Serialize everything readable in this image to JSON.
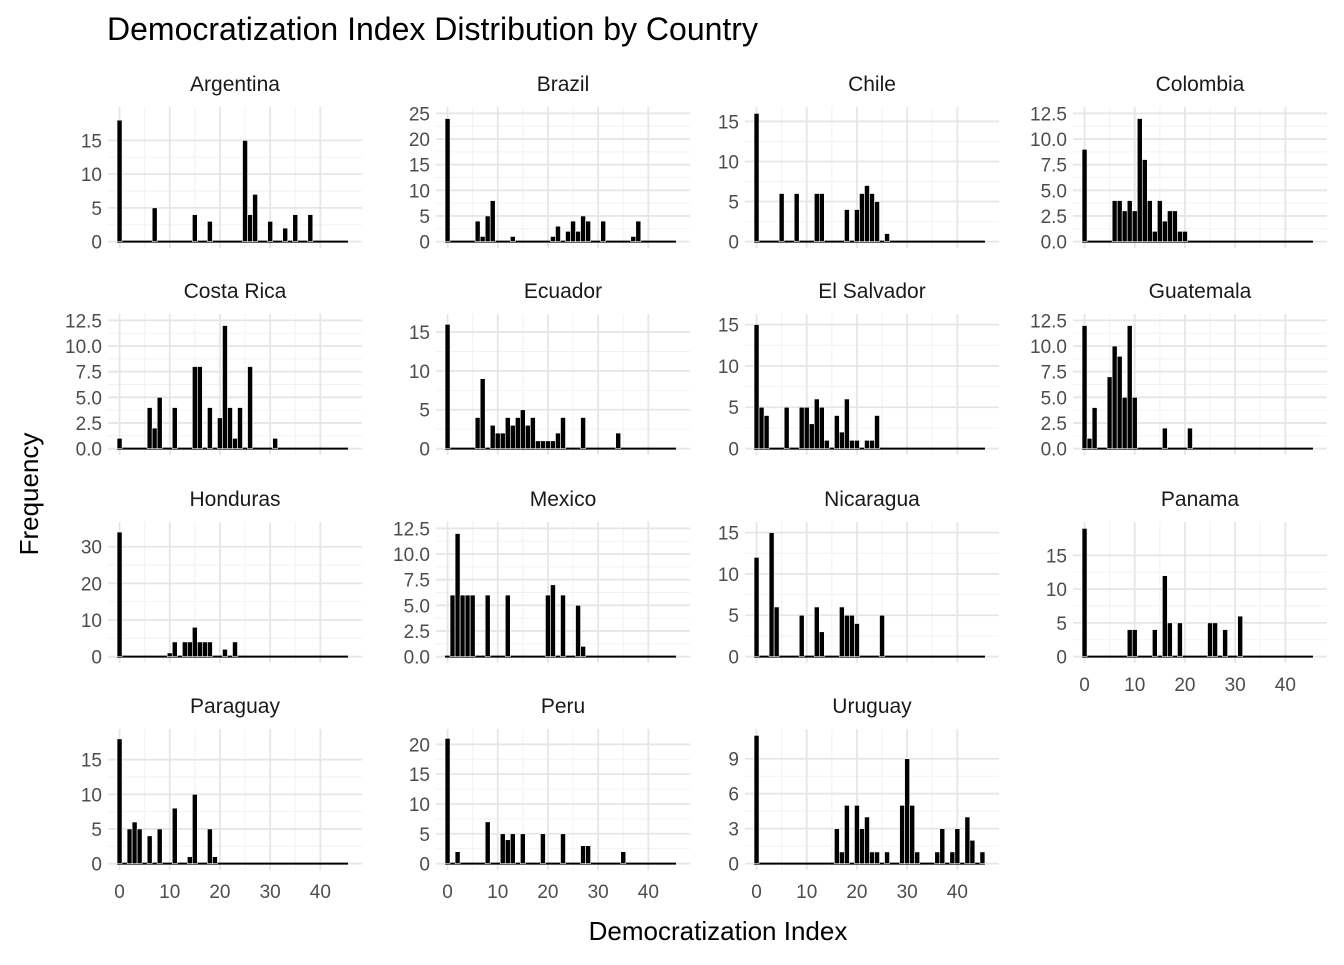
{
  "chart_data": {
    "type": "bar",
    "title": "Democratization Index Distribution by Country",
    "xlabel": "Democratization Index",
    "ylabel": "Frequency",
    "xlim": [
      0,
      46
    ],
    "x_ticks": [
      0,
      10,
      20,
      30,
      40
    ],
    "bin_width": 1,
    "bar_color": "#000000",
    "grid": true,
    "panels": [
      {
        "name": "Argentina",
        "y_ticks": [
          "0",
          "5",
          "10",
          "15"
        ],
        "y_tick_values": [
          0,
          5,
          10,
          15
        ],
        "ylim": [
          0,
          19
        ],
        "bars": [
          [
            0,
            18
          ],
          [
            7,
            5
          ],
          [
            15,
            4
          ],
          [
            18,
            3
          ],
          [
            25,
            15
          ],
          [
            26,
            4
          ],
          [
            27,
            7
          ],
          [
            30,
            3
          ],
          [
            33,
            2
          ],
          [
            35,
            4
          ],
          [
            38,
            4
          ]
        ]
      },
      {
        "name": "Brazil",
        "y_ticks": [
          "0",
          "5",
          "10",
          "15",
          "20",
          "25"
        ],
        "y_tick_values": [
          0,
          5,
          10,
          15,
          20,
          25
        ],
        "ylim": [
          0,
          25
        ],
        "bars": [
          [
            0,
            24
          ],
          [
            6,
            4
          ],
          [
            7,
            1
          ],
          [
            8,
            5
          ],
          [
            9,
            8
          ],
          [
            13,
            1
          ],
          [
            21,
            1
          ],
          [
            22,
            3
          ],
          [
            24,
            2
          ],
          [
            25,
            4
          ],
          [
            26,
            2
          ],
          [
            27,
            5
          ],
          [
            28,
            4
          ],
          [
            31,
            4
          ],
          [
            37,
            1
          ],
          [
            38,
            4
          ]
        ]
      },
      {
        "name": "Chile",
        "y_ticks": [
          "0",
          "5",
          "10",
          "15"
        ],
        "y_tick_values": [
          0,
          5,
          10,
          15
        ],
        "ylim": [
          0,
          16
        ],
        "bars": [
          [
            0,
            16
          ],
          [
            5,
            6
          ],
          [
            8,
            6
          ],
          [
            12,
            6
          ],
          [
            13,
            6
          ],
          [
            18,
            4
          ],
          [
            20,
            4
          ],
          [
            21,
            6
          ],
          [
            22,
            7
          ],
          [
            23,
            6
          ],
          [
            24,
            5
          ],
          [
            26,
            1
          ]
        ]
      },
      {
        "name": "Colombia",
        "y_ticks": [
          "0.0",
          "2.5",
          "5.0",
          "7.5",
          "10.0",
          "12.5"
        ],
        "y_tick_values": [
          0,
          2.5,
          5,
          7.5,
          10,
          12.5
        ],
        "ylim": [
          0,
          12.5
        ],
        "bars": [
          [
            0,
            9
          ],
          [
            6,
            4
          ],
          [
            7,
            4
          ],
          [
            8,
            3
          ],
          [
            9,
            4
          ],
          [
            10,
            3
          ],
          [
            11,
            12
          ],
          [
            12,
            8
          ],
          [
            13,
            4
          ],
          [
            14,
            1
          ],
          [
            15,
            4
          ],
          [
            16,
            2
          ],
          [
            17,
            3
          ],
          [
            18,
            3
          ],
          [
            19,
            1
          ],
          [
            20,
            1
          ]
        ]
      },
      {
        "name": "Costa Rica",
        "y_ticks": [
          "0.0",
          "2.5",
          "5.0",
          "7.5",
          "10.0",
          "12.5"
        ],
        "y_tick_values": [
          0,
          2.5,
          5,
          7.5,
          10,
          12.5
        ],
        "ylim": [
          0,
          12.5
        ],
        "bars": [
          [
            0,
            1
          ],
          [
            6,
            4
          ],
          [
            7,
            2
          ],
          [
            8,
            5
          ],
          [
            11,
            4
          ],
          [
            15,
            8
          ],
          [
            16,
            8
          ],
          [
            18,
            4
          ],
          [
            20,
            3
          ],
          [
            21,
            12
          ],
          [
            22,
            4
          ],
          [
            23,
            1
          ],
          [
            24,
            4
          ],
          [
            26,
            8
          ],
          [
            31,
            1
          ]
        ]
      },
      {
        "name": "Ecuador",
        "y_ticks": [
          "0",
          "5",
          "10",
          "15"
        ],
        "y_tick_values": [
          0,
          5,
          10,
          15
        ],
        "ylim": [
          0,
          16.5
        ],
        "bars": [
          [
            0,
            16
          ],
          [
            6,
            4
          ],
          [
            7,
            9
          ],
          [
            9,
            3
          ],
          [
            10,
            2
          ],
          [
            11,
            2
          ],
          [
            12,
            4
          ],
          [
            13,
            3
          ],
          [
            14,
            4
          ],
          [
            15,
            5
          ],
          [
            16,
            3
          ],
          [
            17,
            4
          ],
          [
            18,
            1
          ],
          [
            19,
            1
          ],
          [
            20,
            1
          ],
          [
            21,
            1
          ],
          [
            22,
            2
          ],
          [
            23,
            4
          ],
          [
            27,
            4
          ],
          [
            34,
            2
          ]
        ]
      },
      {
        "name": "El Salvador",
        "y_ticks": [
          "0",
          "5",
          "10",
          "15"
        ],
        "y_tick_values": [
          0,
          5,
          10,
          15
        ],
        "ylim": [
          0,
          15.5
        ],
        "bars": [
          [
            0,
            15
          ],
          [
            1,
            5
          ],
          [
            2,
            4
          ],
          [
            6,
            5
          ],
          [
            9,
            5
          ],
          [
            10,
            5
          ],
          [
            11,
            3
          ],
          [
            12,
            6
          ],
          [
            13,
            5
          ],
          [
            14,
            1
          ],
          [
            16,
            4
          ],
          [
            17,
            2
          ],
          [
            18,
            6
          ],
          [
            19,
            1
          ],
          [
            20,
            1
          ],
          [
            22,
            1
          ],
          [
            23,
            1
          ],
          [
            24,
            4
          ]
        ]
      },
      {
        "name": "Guatemala",
        "y_ticks": [
          "0.0",
          "2.5",
          "5.0",
          "7.5",
          "10.0",
          "12.5"
        ],
        "y_tick_values": [
          0,
          2.5,
          5,
          7.5,
          10,
          12.5
        ],
        "ylim": [
          0,
          12.5
        ],
        "bars": [
          [
            0,
            12
          ],
          [
            1,
            1
          ],
          [
            2,
            4
          ],
          [
            5,
            7
          ],
          [
            6,
            10
          ],
          [
            7,
            9
          ],
          [
            8,
            5
          ],
          [
            9,
            12
          ],
          [
            10,
            5
          ],
          [
            16,
            2
          ],
          [
            21,
            2
          ]
        ]
      },
      {
        "name": "Honduras",
        "y_ticks": [
          "0",
          "10",
          "20",
          "30"
        ],
        "y_tick_values": [
          0,
          10,
          20,
          30
        ],
        "ylim": [
          0,
          35
        ],
        "bars": [
          [
            0,
            34
          ],
          [
            10,
            1
          ],
          [
            11,
            4
          ],
          [
            13,
            4
          ],
          [
            14,
            4
          ],
          [
            15,
            8
          ],
          [
            16,
            4
          ],
          [
            17,
            4
          ],
          [
            18,
            4
          ],
          [
            21,
            2
          ],
          [
            23,
            4
          ]
        ]
      },
      {
        "name": "Mexico",
        "y_ticks": [
          "0.0",
          "2.5",
          "5.0",
          "7.5",
          "10.0",
          "12.5"
        ],
        "y_tick_values": [
          0,
          2.5,
          5,
          7.5,
          10,
          12.5
        ],
        "ylim": [
          0,
          12.5
        ],
        "bars": [
          [
            1,
            6
          ],
          [
            2,
            12
          ],
          [
            3,
            6
          ],
          [
            4,
            6
          ],
          [
            5,
            6
          ],
          [
            8,
            6
          ],
          [
            12,
            6
          ],
          [
            20,
            6
          ],
          [
            21,
            7
          ],
          [
            23,
            6
          ],
          [
            26,
            5
          ],
          [
            27,
            1
          ]
        ]
      },
      {
        "name": "Nicaragua",
        "y_ticks": [
          "0",
          "5",
          "10",
          "15"
        ],
        "y_tick_values": [
          0,
          5,
          10,
          15
        ],
        "ylim": [
          0,
          15.5
        ],
        "bars": [
          [
            0,
            12
          ],
          [
            3,
            15
          ],
          [
            4,
            6
          ],
          [
            9,
            5
          ],
          [
            12,
            6
          ],
          [
            13,
            3
          ],
          [
            17,
            6
          ],
          [
            18,
            5
          ],
          [
            19,
            5
          ],
          [
            20,
            4
          ],
          [
            25,
            5
          ]
        ]
      },
      {
        "name": "Panama",
        "y_ticks": [
          "0",
          "5",
          "10",
          "15"
        ],
        "y_tick_values": [
          0,
          5,
          10,
          15
        ],
        "ylim": [
          0,
          19
        ],
        "bars": [
          [
            0,
            19
          ],
          [
            9,
            4
          ],
          [
            10,
            4
          ],
          [
            14,
            4
          ],
          [
            16,
            12
          ],
          [
            17,
            5
          ],
          [
            19,
            5
          ],
          [
            25,
            5
          ],
          [
            26,
            5
          ],
          [
            28,
            4
          ],
          [
            31,
            6
          ]
        ]
      },
      {
        "name": "Paraguay",
        "y_ticks": [
          "0",
          "5",
          "10",
          "15"
        ],
        "y_tick_values": [
          0,
          5,
          10,
          15
        ],
        "ylim": [
          0,
          18.5
        ],
        "bars": [
          [
            0,
            18
          ],
          [
            2,
            5
          ],
          [
            3,
            6
          ],
          [
            4,
            5
          ],
          [
            6,
            4
          ],
          [
            8,
            5
          ],
          [
            11,
            8
          ],
          [
            14,
            1
          ],
          [
            15,
            10
          ],
          [
            18,
            5
          ],
          [
            19,
            1
          ]
        ]
      },
      {
        "name": "Peru",
        "y_ticks": [
          "0",
          "5",
          "10",
          "15",
          "20"
        ],
        "y_tick_values": [
          0,
          5,
          10,
          15,
          20
        ],
        "ylim": [
          0,
          21.5
        ],
        "bars": [
          [
            0,
            21
          ],
          [
            2,
            2
          ],
          [
            8,
            7
          ],
          [
            11,
            5
          ],
          [
            12,
            4
          ],
          [
            13,
            5
          ],
          [
            15,
            5
          ],
          [
            19,
            5
          ],
          [
            23,
            5
          ],
          [
            27,
            3
          ],
          [
            28,
            3
          ],
          [
            35,
            2
          ]
        ]
      },
      {
        "name": "Uruguay",
        "y_ticks": [
          "0",
          "3",
          "6",
          "9"
        ],
        "y_tick_values": [
          0,
          3,
          6,
          9
        ],
        "ylim": [
          0,
          11
        ],
        "bars": [
          [
            0,
            11
          ],
          [
            16,
            3
          ],
          [
            17,
            1
          ],
          [
            18,
            5
          ],
          [
            20,
            5
          ],
          [
            21,
            3
          ],
          [
            22,
            4
          ],
          [
            23,
            1
          ],
          [
            24,
            1
          ],
          [
            26,
            1
          ],
          [
            29,
            5
          ],
          [
            30,
            9
          ],
          [
            31,
            5
          ],
          [
            32,
            1
          ],
          [
            36,
            1
          ],
          [
            37,
            3
          ],
          [
            39,
            1
          ],
          [
            40,
            3
          ],
          [
            42,
            4
          ],
          [
            43,
            2
          ],
          [
            45,
            1
          ]
        ]
      }
    ]
  }
}
